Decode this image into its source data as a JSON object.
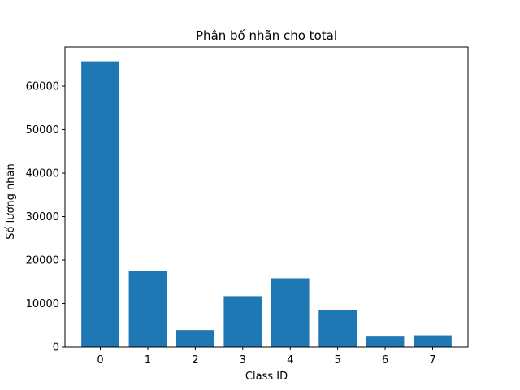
{
  "chart_data": {
    "type": "bar",
    "title": "Phân bố nhãn cho total",
    "xlabel": "Class ID",
    "ylabel": "Số lượng nhãn",
    "categories": [
      "0",
      "1",
      "2",
      "3",
      "4",
      "5",
      "6",
      "7"
    ],
    "values": [
      65700,
      17500,
      3900,
      11700,
      15800,
      8600,
      2400,
      2700
    ],
    "ylim": [
      0,
      68985
    ],
    "yticks": [
      0,
      10000,
      20000,
      30000,
      40000,
      50000,
      60000
    ],
    "grid": false,
    "legend": "none",
    "bar_color": "#1f77b4"
  }
}
